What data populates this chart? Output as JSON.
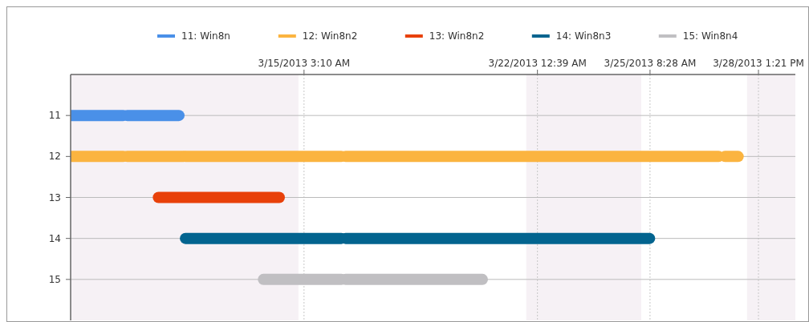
{
  "chart_data": {
    "type": "line",
    "xlim": [
      "2013-03-08T05:41",
      "2013-03-29T15:30"
    ],
    "xticks": [
      {
        "value": "2013-03-15T03:10",
        "label": "3/15/2013 3:10 AM"
      },
      {
        "value": "2013-03-22T00:39",
        "label": "3/22/2013 12:39 AM"
      },
      {
        "value": "2013-03-25T08:28",
        "label": "3/25/2013 8:28 AM"
      },
      {
        "value": "2013-03-28T13:21",
        "label": "3/28/2013 1:21 PM"
      }
    ],
    "ylim": [
      16,
      10
    ],
    "yticks": [
      11,
      12,
      13,
      14,
      15
    ],
    "series": [
      {
        "name": "11: Win8n",
        "color": "#4a90e8",
        "x": [
          "2013-03-08T05:41",
          "2013-03-09T19:05"
        ],
        "values": [
          11,
          11
        ]
      },
      {
        "color": "#4a90e8",
        "x": [
          "2013-03-09T21:45",
          "2013-03-11T10:28"
        ],
        "values": [
          11,
          11
        ]
      },
      {
        "name": "12: Win8n2",
        "color": "#fbb440",
        "x": [
          "2013-03-08T05:41",
          "2013-03-09T19:05"
        ],
        "values": [
          12,
          12
        ]
      },
      {
        "color": "#fbb440",
        "x": [
          "2013-03-09T21:45",
          "2013-03-11T13:47"
        ],
        "values": [
          12,
          12
        ]
      },
      {
        "color": "#fbb440",
        "x": [
          "2013-03-11T15:06",
          "2013-03-16T05:38"
        ],
        "values": [
          12,
          12
        ]
      },
      {
        "color": "#fbb440",
        "x": [
          "2013-03-16T08:37",
          "2013-03-27T09:06"
        ],
        "values": [
          12,
          12
        ]
      },
      {
        "color": "#fbb440",
        "x": [
          "2013-03-27T13:34",
          "2013-03-27T22:57"
        ],
        "values": [
          12,
          12
        ]
      },
      {
        "name": "13: Win8n2",
        "color": "#e8410a",
        "x": [
          "2013-03-10T19:55",
          "2013-03-11T13:47"
        ],
        "values": [
          13,
          13
        ]
      },
      {
        "color": "#e8410a",
        "x": [
          "2013-03-11T15:06",
          "2013-03-14T09:37"
        ],
        "values": [
          13,
          13
        ]
      },
      {
        "name": "14: Win8n3",
        "color": "#03648f",
        "x": [
          "2013-03-11T15:06",
          "2013-03-16T05:38"
        ],
        "values": [
          14,
          14
        ]
      },
      {
        "color": "#03648f",
        "x": [
          "2013-03-16T08:37",
          "2013-03-25T08:08"
        ],
        "values": [
          14,
          14
        ]
      },
      {
        "name": "15: Win8n4",
        "color": "#c0bfc2",
        "x": [
          "2013-03-13T22:22",
          "2013-03-16T05:38"
        ],
        "values": [
          15,
          15
        ]
      },
      {
        "color": "#c0bfc2",
        "x": [
          "2013-03-16T08:37",
          "2013-03-20T09:36"
        ],
        "values": [
          15,
          15
        ]
      }
    ],
    "bands": [
      {
        "axis": "x",
        "from": "2013-03-08T05:41",
        "to": "2013-03-14T23:12",
        "color": "#f6f1f5"
      },
      {
        "axis": "x",
        "from": "2013-03-21T16:42",
        "to": "2013-03-25T02:14",
        "color": "#f6f1f5"
      },
      {
        "axis": "x",
        "from": "2013-03-28T05:14",
        "to": "2013-03-29T15:30",
        "color": "#f6f1f5"
      }
    ],
    "grid": true,
    "legend": "top"
  }
}
